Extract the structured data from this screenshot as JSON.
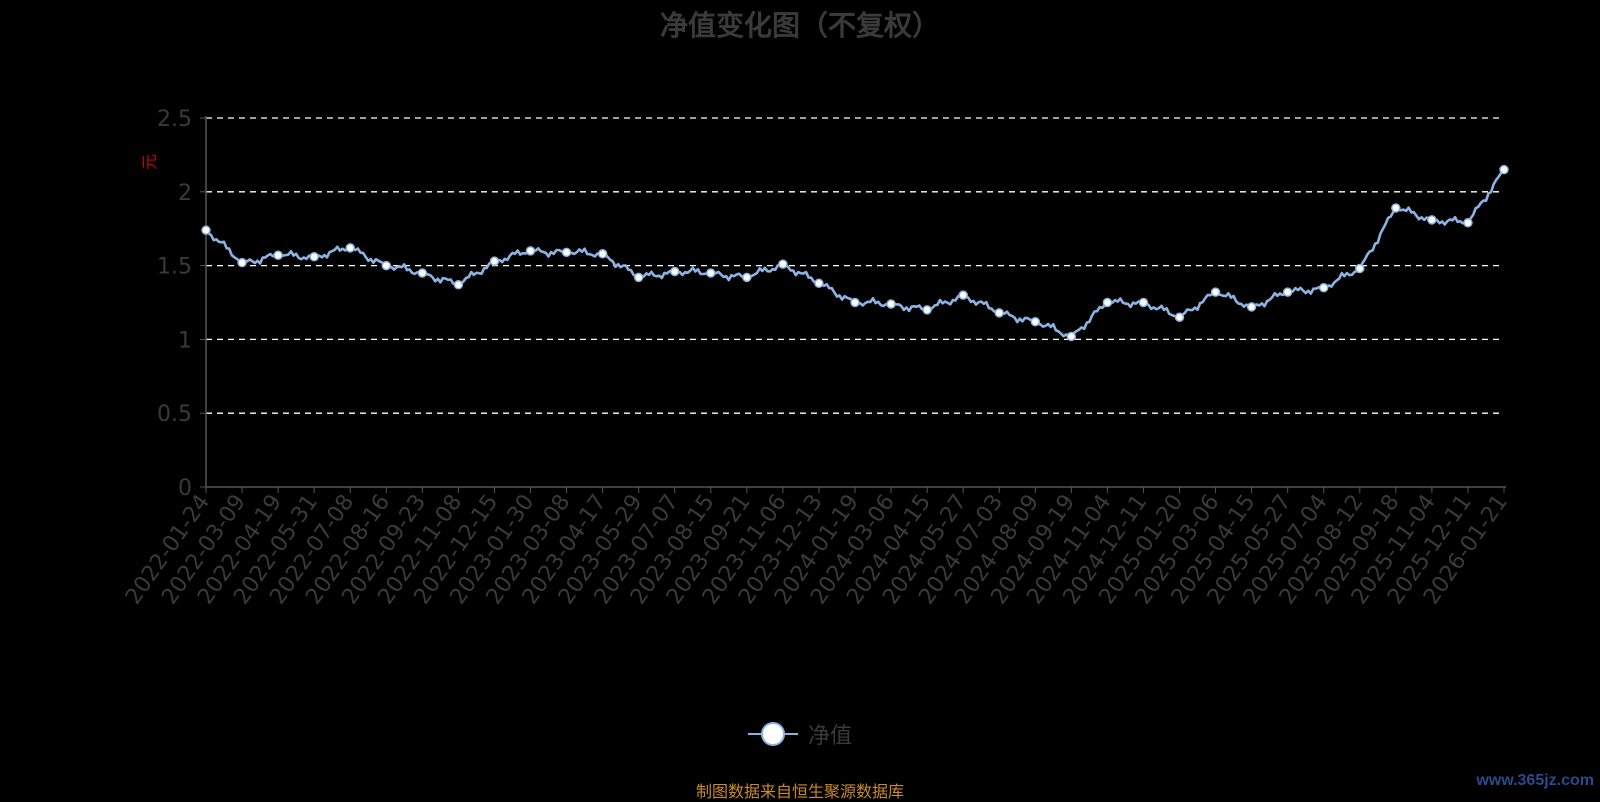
{
  "chart_data": {
    "type": "line",
    "title": "净值变化图（不复权）",
    "ylabel": "元",
    "ylim": [
      0,
      2.5
    ],
    "yticks": [
      "0",
      "0.5",
      "1",
      "1.5",
      "2",
      "2.5"
    ],
    "grid": true,
    "legend_position": "bottom",
    "categories": [
      "2022-01-24",
      "2022-03-09",
      "2022-04-19",
      "2022-05-31",
      "2022-07-08",
      "2022-08-16",
      "2022-09-23",
      "2022-11-08",
      "2022-12-15",
      "2023-01-30",
      "2023-03-08",
      "2023-04-17",
      "2023-05-29",
      "2023-07-07",
      "2023-08-15",
      "2023-09-21",
      "2023-11-06",
      "2023-12-13",
      "2024-01-19",
      "2024-03-06",
      "2024-04-15",
      "2024-05-27",
      "2024-07-03",
      "2024-08-09",
      "2024-09-19",
      "2024-11-04",
      "2024-12-11",
      "2025-01-20",
      "2025-03-06",
      "2025-04-15",
      "2025-05-27",
      "2025-07-04",
      "2025-08-12",
      "2025-09-18",
      "2025-11-04",
      "2025-12-11",
      "2026-01-21"
    ],
    "series": [
      {
        "name": "净值",
        "color": "#8eb2e0",
        "values": [
          1.74,
          1.52,
          1.57,
          1.56,
          1.62,
          1.5,
          1.45,
          1.37,
          1.53,
          1.6,
          1.59,
          1.58,
          1.42,
          1.46,
          1.45,
          1.42,
          1.51,
          1.38,
          1.25,
          1.24,
          1.2,
          1.3,
          1.18,
          1.12,
          1.02,
          1.25,
          1.25,
          1.15,
          1.32,
          1.22,
          1.32,
          1.35,
          1.48,
          1.89,
          1.81,
          1.79,
          2.15
        ]
      }
    ]
  },
  "legend": {
    "label": "净值"
  },
  "source_note": "制图数据来自恒生聚源数据库",
  "watermark": "www.365jz.com",
  "colors": {
    "background": "#000000",
    "line": "#8eb2e0",
    "grid": "#ffffff",
    "axis": "#555555"
  }
}
